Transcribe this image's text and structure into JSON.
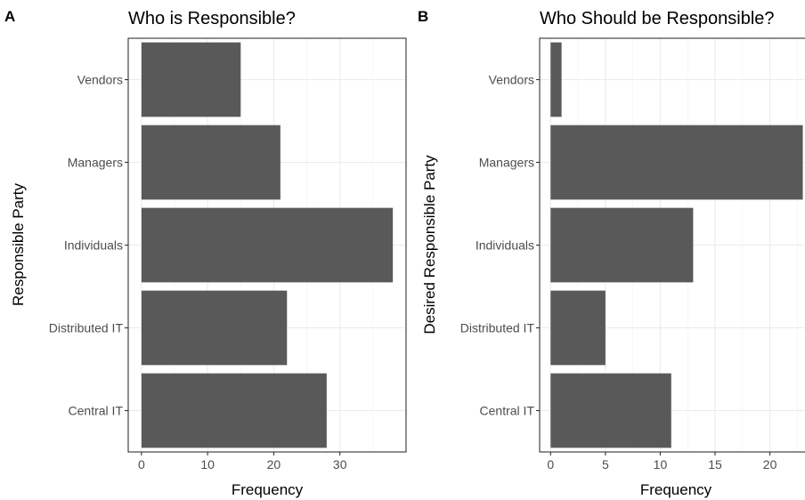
{
  "chart_data": [
    {
      "type": "bar",
      "orientation": "horizontal",
      "panel_tag": "A",
      "title": "Who is Responsible?",
      "xlabel": "Frequency",
      "ylabel": "Responsible Party",
      "categories": [
        "Vendors",
        "Managers",
        "Individuals",
        "Distributed IT",
        "Central IT"
      ],
      "values": [
        15,
        21,
        38,
        22,
        28
      ],
      "xlim": [
        -2,
        40
      ],
      "xticks": [
        0,
        10,
        20,
        30
      ],
      "xtick_labels": [
        "0",
        "10",
        "20",
        "30"
      ],
      "grid": true,
      "bar_color": "#595959"
    },
    {
      "type": "bar",
      "orientation": "horizontal",
      "panel_tag": "B",
      "title": "Who Should be Responsible?",
      "xlabel": "Frequency",
      "ylabel": "Desired Responsible Party",
      "categories": [
        "Vendors",
        "Managers",
        "Individuals",
        "Distributed IT",
        "Central IT"
      ],
      "values": [
        1,
        23,
        13,
        5,
        11
      ],
      "xlim": [
        -1,
        23.2
      ],
      "xticks": [
        0,
        5,
        10,
        15,
        20
      ],
      "xtick_labels": [
        "0",
        "5",
        "10",
        "15",
        "20"
      ],
      "grid": true,
      "bar_color": "#595959"
    }
  ]
}
